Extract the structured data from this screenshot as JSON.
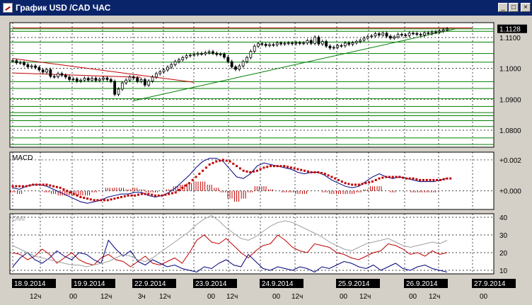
{
  "window": {
    "title": "График USD /CAD  ЧАС",
    "buttons": {
      "minimize": "_",
      "maximize": "□",
      "close": "×"
    }
  },
  "colors": {
    "background": "#ffffff",
    "grid": "#000000",
    "level_lines": "#008000",
    "trendline_red": "#c00000",
    "trendline_green": "#008000",
    "candles": "#000000",
    "macd_line": "#000080",
    "macd_signal": "#c00000",
    "dmi_plus": "#c00000",
    "dmi_minus": "#000080",
    "adx": "#a0a0a0",
    "price_label_bg": "#000000",
    "price_label_fg": "#ffffff"
  },
  "chart_data": [
    {
      "type": "candlestick",
      "title": "",
      "current_price_label": "1.1128",
      "y_ticks": [
        "1.1100",
        "1.1000",
        "1.0900",
        "1.0800"
      ],
      "y_tick_values": [
        1.11,
        1.1,
        1.09,
        1.08
      ],
      "ylim": [
        1.0745,
        1.1148
      ],
      "horizontal_levels": [
        1.1128,
        1.112,
        1.1085,
        1.1048,
        1.102,
        1.0957,
        1.0935,
        1.0902,
        1.0877,
        1.0857,
        1.0847,
        1.0831,
        1.0812,
        1.0775,
        1.0754
      ],
      "trendlines": [
        {
          "color": "red",
          "from": [
            "18.9.2014 00",
            1.0985
          ],
          "to": [
            "22.9.2014 03",
            1.0971
          ]
        },
        {
          "color": "red",
          "from": [
            "18.9.2014 00",
            1.1032
          ],
          "to": [
            "23.9.2014 00",
            1.0955
          ]
        },
        {
          "color": "green",
          "from": [
            "22.9.2014 00",
            1.0895
          ],
          "to": [
            "26.9.2014 18",
            1.1128
          ]
        },
        {
          "color": "red",
          "from": [
            "18.9.2014 00",
            1.1131
          ],
          "to": [
            "27.9.2014 00",
            1.1131
          ]
        }
      ],
      "close_series": [
        1.1025,
        1.1018,
        1.1019,
        1.1012,
        1.1005,
        1.1008,
        1.1003,
        1.0995,
        1.0988,
        1.0996,
        1.0974,
        1.0973,
        1.0983,
        1.0978,
        1.0972,
        1.0964,
        1.0966,
        1.0959,
        1.0962,
        1.0968,
        1.0962,
        1.0968,
        1.0961,
        1.0965,
        1.0969,
        1.0964,
        1.0958,
        1.0916,
        1.0933,
        1.0953,
        1.0962,
        1.0972,
        1.0969,
        1.0958,
        1.0964,
        1.0946,
        1.0959,
        1.0972,
        1.0983,
        1.0989,
        1.0995,
        1.1004,
        1.1012,
        1.1022,
        1.1028,
        1.1035,
        1.1041,
        1.1043,
        1.1045,
        1.1048,
        1.1047,
        1.1051,
        1.1054,
        1.1049,
        1.1045,
        1.1046,
        1.1036,
        1.1022,
        1.1005,
        1.0997,
        1.1008,
        1.1022,
        1.1035,
        1.1055,
        1.1072,
        1.108,
        1.1078,
        1.1074,
        1.1077,
        1.1076,
        1.1082,
        1.1079,
        1.1081,
        1.1082,
        1.108,
        1.1083,
        1.1081,
        1.1082,
        1.109,
        1.1081,
        1.1101,
        1.1079,
        1.1087,
        1.1072,
        1.1066,
        1.1068,
        1.1074,
        1.1073,
        1.1082,
        1.1078,
        1.1083,
        1.1087,
        1.1091,
        1.1098,
        1.1103,
        1.1105,
        1.1112,
        1.1108,
        1.1114,
        1.1104,
        1.1098,
        1.1102,
        1.111,
        1.1108,
        1.1106,
        1.1114,
        1.1113,
        1.111,
        1.1108,
        1.1115,
        1.1113,
        1.1117,
        1.1118,
        1.1121,
        1.1125,
        1.1128
      ]
    },
    {
      "type": "line",
      "indicator": "MACD",
      "label": "MACD",
      "y_ticks": [
        "+0.002",
        "+0.000"
      ],
      "y_tick_values": [
        0.002,
        0.0
      ],
      "ylim": [
        -0.0012,
        0.0025
      ],
      "series": [
        {
          "name": "MACD",
          "values": [
            0.0002,
            0.0001,
            0.0003,
            0.0004,
            0.0004,
            0.0003,
            0.0001,
            -0.0001,
            -0.0003,
            -0.0005,
            -0.0007,
            -0.0008,
            -0.0007,
            -0.0006,
            -0.0004,
            -0.0003,
            -0.0002,
            -0.0002,
            -0.0001,
            -0.0001,
            -0.0003,
            -0.0004,
            -0.0003,
            -0.0001,
            0.0002,
            0.0006,
            0.001,
            0.0015,
            0.0019,
            0.0021,
            0.0021,
            0.0019,
            0.0014,
            0.0009,
            0.0008,
            0.0011,
            0.0016,
            0.0018,
            0.0017,
            0.0016,
            0.0015,
            0.0014,
            0.0012,
            0.0011,
            0.0012,
            0.0012,
            0.001,
            0.0007,
            0.0005,
            0.0003,
            0.0002,
            0.0003,
            0.0006,
            0.0009,
            0.0011,
            0.0009,
            0.0008,
            0.0009,
            0.0008,
            0.0007,
            0.0006,
            0.0006,
            0.0006,
            0.0007,
            0.0008
          ]
        },
        {
          "name": "Signal",
          "values": [
            0.0003,
            0.0003,
            0.0003,
            0.0004,
            0.0004,
            0.0004,
            0.0003,
            0.0002,
            0.0,
            -0.0002,
            -0.0004,
            -0.0005,
            -0.0006,
            -0.0006,
            -0.0006,
            -0.0005,
            -0.0004,
            -0.0003,
            -0.0003,
            -0.0002,
            -0.0002,
            -0.0003,
            -0.0003,
            -0.0002,
            -0.0001,
            0.0002,
            0.0005,
            0.0009,
            0.0013,
            0.0017,
            0.0019,
            0.002,
            0.0019,
            0.0016,
            0.0013,
            0.0012,
            0.0013,
            0.0015,
            0.0016,
            0.0016,
            0.0016,
            0.0015,
            0.0014,
            0.0013,
            0.0012,
            0.0012,
            0.0011,
            0.0009,
            0.0007,
            0.0005,
            0.0004,
            0.0004,
            0.0005,
            0.0006,
            0.0008,
            0.0009,
            0.0009,
            0.0009,
            0.0008,
            0.0008,
            0.0007,
            0.0007,
            0.0007,
            0.0007,
            0.0008
          ]
        },
        {
          "name": "Histogram",
          "values": [
            -0.0001,
            -0.0002,
            0.0,
            0.0,
            0.0,
            -0.0001,
            -0.0002,
            -0.0003,
            -0.0003,
            -0.0003,
            -0.0003,
            -0.0003,
            -0.0001,
            0.0,
            0.0002,
            0.0002,
            0.0002,
            0.0001,
            0.0002,
            0.0001,
            -0.0001,
            -0.0001,
            0.0,
            0.0001,
            0.0003,
            0.0004,
            0.0005,
            0.0006,
            0.0006,
            0.0004,
            0.0002,
            -0.0001,
            -0.0005,
            -0.0007,
            -0.0005,
            -0.0001,
            0.0003,
            0.0003,
            0.0001,
            0.0,
            -0.0001,
            -0.0001,
            -0.0002,
            -0.0002,
            0.0,
            0.0,
            -0.0001,
            -0.0002,
            -0.0002,
            -0.0002,
            -0.0002,
            -0.0001,
            0.0001,
            0.0003,
            0.0003,
            0.0,
            -0.0001,
            0.0,
            0.0,
            -0.0001,
            -0.0001,
            -0.0001,
            -0.0001,
            0.0,
            0.0
          ]
        }
      ]
    },
    {
      "type": "line",
      "indicator": "DMI",
      "label": "DMI",
      "y_ticks": [
        "40",
        "30",
        "20",
        "10"
      ],
      "y_tick_values": [
        40,
        30,
        20,
        10
      ],
      "ylim": [
        8,
        42
      ],
      "series": [
        {
          "name": "+DI",
          "values": [
            20,
            19,
            16,
            18,
            22,
            19,
            14,
            17,
            20,
            16,
            14,
            13,
            17,
            19,
            16,
            15,
            12,
            15,
            18,
            14,
            13,
            15,
            17,
            14,
            20,
            27,
            30,
            26,
            25,
            28,
            24,
            20,
            17,
            21,
            24,
            25,
            30,
            27,
            23,
            21,
            20,
            25,
            24,
            23,
            20,
            19,
            17,
            16,
            18,
            20,
            21,
            25,
            24,
            22,
            19,
            20,
            18,
            21,
            19,
            20
          ]
        },
        {
          "name": "-DI",
          "values": [
            12,
            17,
            20,
            16,
            14,
            17,
            21,
            18,
            16,
            20,
            19,
            16,
            14,
            27,
            22,
            18,
            21,
            15,
            13,
            16,
            14,
            12,
            13,
            11,
            10,
            9,
            12,
            11,
            14,
            16,
            13,
            12,
            19,
            15,
            11,
            10,
            12,
            11,
            10,
            12,
            11,
            9,
            12,
            11,
            13,
            15,
            14,
            12,
            11,
            13,
            10,
            12,
            14,
            11,
            10,
            12,
            13,
            11,
            10,
            9
          ]
        },
        {
          "name": "ADX",
          "values": [
            24,
            22,
            20,
            18,
            17,
            16,
            15,
            14,
            13,
            13,
            12,
            13,
            14,
            15,
            17,
            19,
            18,
            16,
            15,
            17,
            20,
            23,
            26,
            29,
            32,
            36,
            39,
            41,
            38,
            34,
            31,
            28,
            27,
            29,
            32,
            35,
            37,
            38,
            37,
            35,
            33,
            31,
            29,
            26,
            24,
            22,
            21,
            23,
            25,
            26,
            27,
            28,
            26,
            24,
            23,
            24,
            25,
            26,
            25,
            27
          ]
        }
      ]
    }
  ],
  "x_axis": {
    "dates": [
      "18.9.2014",
      "19.9.2014",
      "22.9.2014",
      "23.9.2014",
      "24.9.2014",
      "25.9.2014",
      "26.9.2014",
      "27.9.2014"
    ],
    "hour_labels": [
      {
        "text": "12ч"
      },
      {
        "text": "00"
      },
      {
        "text": "12ч"
      },
      {
        "text": "3ч"
      },
      {
        "text": "12ч"
      },
      {
        "text": "00"
      },
      {
        "text": "12ч"
      },
      {
        "text": "00"
      },
      {
        "text": "12ч"
      },
      {
        "text": "00"
      },
      {
        "text": "12ч"
      },
      {
        "text": "00"
      },
      {
        "text": "12ч"
      },
      {
        "text": "00"
      }
    ]
  }
}
